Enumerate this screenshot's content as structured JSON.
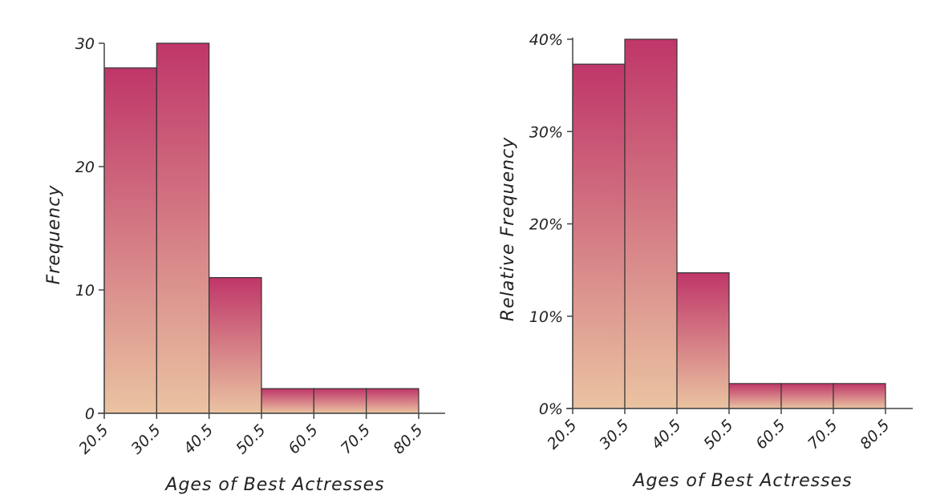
{
  "chart_data": [
    {
      "type": "bar",
      "bin_edges": [
        "20.5",
        "30.5",
        "40.5",
        "50.5",
        "60.5",
        "70.5",
        "80.5"
      ],
      "values": [
        28,
        30,
        11,
        2,
        2,
        2
      ],
      "ylim": [
        0,
        30
      ],
      "yticks": [
        0,
        10,
        20,
        30
      ],
      "ytick_labels": [
        "0",
        "10",
        "20",
        "30"
      ],
      "xlabel": "Ages of Best Actresses",
      "ylabel": "Frequency",
      "grid": false,
      "colors": {
        "bar_top": "#bf3669",
        "bar_bottom": "#eac3a1",
        "edge": "#333333"
      }
    },
    {
      "type": "bar",
      "bin_edges": [
        "20.5",
        "30.5",
        "40.5",
        "50.5",
        "60.5",
        "70.5",
        "80.5"
      ],
      "values": [
        37.3,
        40.0,
        14.7,
        2.7,
        2.7,
        2.7
      ],
      "ylim": [
        0,
        40
      ],
      "yticks": [
        0,
        10,
        20,
        30,
        40
      ],
      "ytick_labels": [
        "0%",
        "10%",
        "20%",
        "30%",
        "40%"
      ],
      "xlabel": "Ages of Best Actresses",
      "ylabel": "Relative Frequency",
      "grid": false,
      "colors": {
        "bar_top": "#bf3669",
        "bar_bottom": "#eac3a1",
        "edge": "#333333"
      }
    }
  ]
}
